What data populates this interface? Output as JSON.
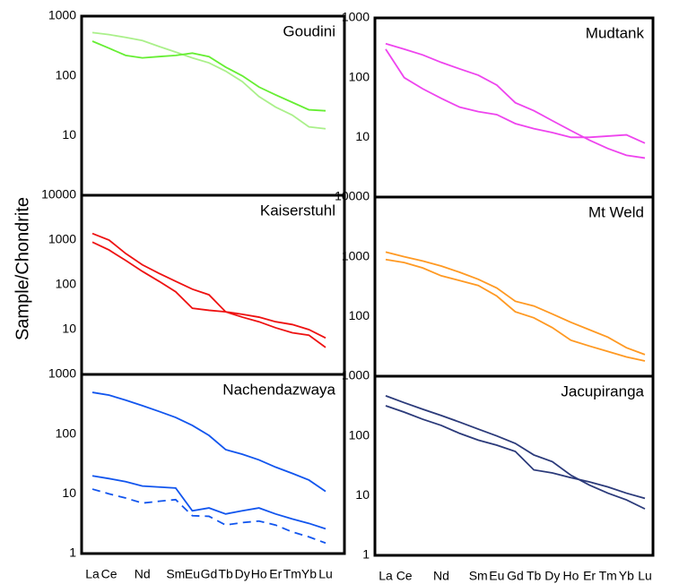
{
  "ylabel": "Sample/Chondrite",
  "chart_data": [
    {
      "type": "line",
      "title": "Goudini",
      "log": true,
      "ylim": [
        1,
        1000
      ],
      "yticks": [
        10,
        100,
        1000
      ],
      "series": [
        {
          "color": "#aaf08a",
          "values": [
            530,
            490,
            440,
            390,
            310,
            250,
            200,
            165,
            120,
            80,
            45,
            30,
            22,
            14,
            13
          ]
        },
        {
          "color": "#66ee33",
          "values": [
            380,
            290,
            220,
            200,
            210,
            220,
            240,
            210,
            140,
            100,
            65,
            48,
            36,
            27,
            26
          ]
        }
      ]
    },
    {
      "type": "line",
      "title": "Mudtank",
      "log": true,
      "ylim": [
        1,
        1000
      ],
      "yticks": [
        10,
        100,
        1000
      ],
      "series": [
        {
          "color": "#ee44ee",
          "values": [
            370,
            300,
            240,
            180,
            140,
            110,
            75,
            38,
            28,
            19,
            13,
            9,
            6.5,
            5,
            4.5
          ]
        },
        {
          "color": "#ee44ee",
          "values": [
            300,
            100,
            65,
            45,
            32,
            27,
            24,
            17,
            14,
            12,
            10,
            10,
            10.5,
            11,
            8
          ]
        }
      ]
    },
    {
      "type": "line",
      "title": "Kaiserstuhl",
      "log": true,
      "ylim": [
        1,
        10000
      ],
      "yticks": [
        10,
        100,
        1000,
        10000
      ],
      "series": [
        {
          "color": "#ee1111",
          "values": [
            1400,
            1000,
            500,
            280,
            180,
            120,
            80,
            60,
            25,
            19,
            15,
            11,
            8.5,
            7.5,
            4
          ]
        },
        {
          "color": "#ee1111",
          "values": [
            900,
            600,
            350,
            200,
            120,
            70,
            30,
            27,
            25,
            22,
            19,
            15,
            13,
            10,
            6.5
          ]
        }
      ]
    },
    {
      "type": "line",
      "title": "Mt Weld",
      "log": true,
      "ylim": [
        10,
        10000
      ],
      "yticks": [
        100,
        1000,
        10000
      ],
      "series": [
        {
          "color": "#ff9922",
          "values": [
            1200,
            1000,
            850,
            700,
            550,
            420,
            300,
            180,
            150,
            110,
            80,
            60,
            45,
            30,
            23
          ]
        },
        {
          "color": "#ff9922",
          "values": [
            900,
            800,
            650,
            480,
            400,
            330,
            220,
            120,
            95,
            65,
            40,
            32,
            26,
            21,
            18
          ]
        }
      ]
    },
    {
      "type": "line",
      "title": "Nachendazwaya",
      "log": true,
      "ylim": [
        1,
        1000
      ],
      "yticks": [
        1,
        10,
        100,
        1000
      ],
      "categories": [
        "La",
        "Ce",
        null,
        "Nd",
        null,
        "Sm",
        "Eu",
        "Gd",
        "Tb",
        "Dy",
        "Ho",
        "Er",
        "Tm",
        "Yb",
        "Lu"
      ],
      "series": [
        {
          "color": "#1155ee",
          "values": [
            500,
            450,
            370,
            300,
            240,
            190,
            140,
            95,
            55,
            46,
            37,
            28,
            22,
            17,
            11
          ]
        },
        {
          "color": "#1155ee",
          "values": [
            20,
            18,
            16,
            13.5,
            13,
            12.5,
            5.2,
            5.8,
            4.6,
            5.2,
            5.8,
            4.6,
            3.8,
            3.2,
            2.6
          ]
        },
        {
          "color": "#1155ee",
          "dashed": true,
          "values": [
            12,
            10,
            8.5,
            7,
            7.5,
            8,
            4.3,
            4.2,
            3,
            3.3,
            3.5,
            3,
            2.3,
            1.9,
            1.5
          ]
        }
      ]
    },
    {
      "type": "line",
      "title": "Jacupiranga",
      "log": true,
      "ylim": [
        1,
        1000
      ],
      "yticks": [
        1,
        10,
        100,
        1000
      ],
      "categories": [
        "La",
        "Ce",
        null,
        "Nd",
        null,
        "Sm",
        "Eu",
        "Gd",
        "Tb",
        "Dy",
        "Ho",
        "Er",
        "Tm",
        "Yb",
        "Lu"
      ],
      "series": [
        {
          "color": "#2b3a7a",
          "values": [
            470,
            360,
            280,
            220,
            170,
            130,
            100,
            75,
            48,
            37,
            22,
            15,
            11,
            8.5,
            6
          ]
        },
        {
          "color": "#2b3a7a",
          "values": [
            320,
            250,
            190,
            150,
            110,
            85,
            70,
            55,
            27,
            24,
            20,
            17,
            14,
            11,
            9
          ]
        }
      ]
    }
  ]
}
